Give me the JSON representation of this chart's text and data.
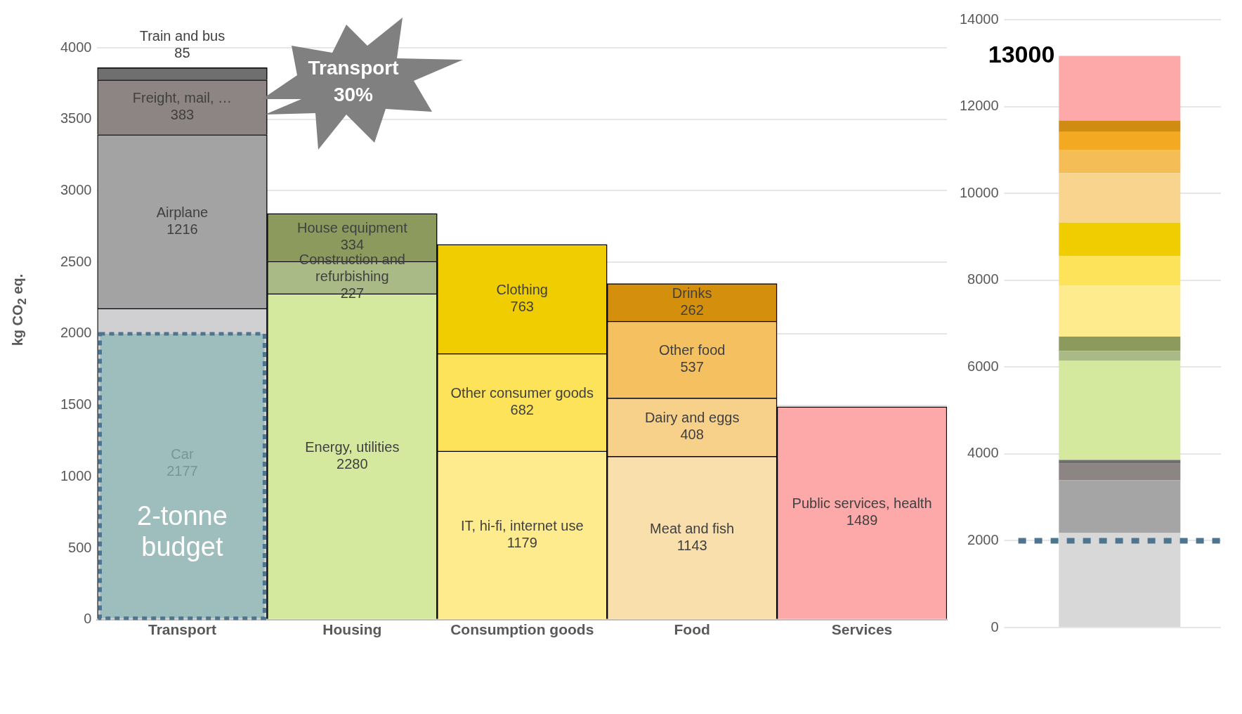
{
  "chart_data": [
    {
      "type": "bar",
      "stacked": true,
      "ylabel": "kg CO$_{2}$ eq.",
      "categories": [
        "Transport",
        "Housing",
        "Consumption goods",
        "Food",
        "Services"
      ],
      "ylim": [
        0,
        4000
      ],
      "yticks": [
        0,
        500,
        1000,
        1500,
        2000,
        2500,
        3000,
        3500,
        4000
      ],
      "grid": "y",
      "legend": false,
      "data_labels": true,
      "series": [
        {
          "name": "Car",
          "color": "#d0d0d2",
          "values": [
            2177,
            null,
            null,
            null,
            null
          ]
        },
        {
          "name": "Airplane",
          "color": "#a3a3a3",
          "values": [
            1216,
            null,
            null,
            null,
            null
          ]
        },
        {
          "name": "Freight, mail, …",
          "color": "#8c8584",
          "values": [
            383,
            null,
            null,
            null,
            null
          ]
        },
        {
          "name": "Train and bus",
          "color": "#6f6f6f",
          "values": [
            85,
            null,
            null,
            null,
            null
          ]
        },
        {
          "name": "Energy, utilities",
          "color": "#d4e89e",
          "values": [
            null,
            2280,
            null,
            null,
            null
          ]
        },
        {
          "name": "Construction and refurbishing",
          "color": "#a9ba86",
          "values": [
            null,
            227,
            null,
            null,
            null
          ]
        },
        {
          "name": "House equipment",
          "color": "#8c9a5e",
          "values": [
            null,
            334,
            null,
            null,
            null
          ]
        },
        {
          "name": "IT, hi-fi, internet use",
          "color": "#fdeb8d",
          "values": [
            null,
            null,
            1179,
            null,
            null
          ]
        },
        {
          "name": "Other consumer goods",
          "color": "#fde35a",
          "values": [
            null,
            null,
            682,
            null,
            null
          ]
        },
        {
          "name": "Clothing",
          "color": "#f0cd00",
          "values": [
            null,
            null,
            763,
            null,
            null
          ]
        },
        {
          "name": "Meat and fish",
          "color": "#f9dfab",
          "values": [
            null,
            null,
            null,
            1143,
            null
          ]
        },
        {
          "name": "Dairy and eggs",
          "color": "#f7d089",
          "values": [
            null,
            null,
            null,
            408,
            null
          ]
        },
        {
          "name": "Other food",
          "color": "#f5c060",
          "values": [
            null,
            null,
            null,
            537,
            null
          ]
        },
        {
          "name": "Drinks",
          "color": "#d4900c",
          "values": [
            null,
            null,
            null,
            262,
            null
          ]
        },
        {
          "name": "Public services, health",
          "color": "#fda9aa",
          "values": [
            null,
            null,
            null,
            null,
            1489
          ]
        }
      ],
      "bands": [
        {
          "axis": "y",
          "from": 0,
          "to": 2000,
          "label": "2-tonne budget",
          "color": "#8ab5b4"
        }
      ],
      "annotations": [
        "Transport 30%"
      ]
    },
    {
      "type": "bar",
      "stacked": true,
      "categories": [
        null
      ],
      "ylim": [
        0,
        14000
      ],
      "yticks": [
        0,
        2000,
        4000,
        6000,
        8000,
        10000,
        12000,
        14000
      ],
      "grid": "y",
      "legend": false,
      "tick_labels": "y",
      "series": [
        {
          "color": "#d8d8d8",
          "values": [
            2177
          ]
        },
        {
          "color": "#a5a5a5",
          "values": [
            1216
          ]
        },
        {
          "color": "#8c8584",
          "values": [
            383
          ]
        },
        {
          "color": "#6f6f6f",
          "values": [
            85
          ]
        },
        {
          "color": "#d4e89e",
          "values": [
            2280
          ]
        },
        {
          "color": "#a9ba86",
          "values": [
            227
          ]
        },
        {
          "color": "#8c9a5e",
          "values": [
            334
          ]
        },
        {
          "color": "#fdeb8d",
          "values": [
            1179
          ]
        },
        {
          "color": "#fde35a",
          "values": [
            682
          ]
        },
        {
          "color": "#f0cd00",
          "values": [
            763
          ]
        },
        {
          "color": "#f9d48f",
          "values": [
            1143
          ]
        },
        {
          "color": "#f5bd55",
          "values": [
            537
          ]
        },
        {
          "color": "#f3aa22",
          "values": [
            408
          ]
        },
        {
          "color": "#d08c12",
          "values": [
            262
          ]
        },
        {
          "color": "#fda9aa",
          "values": [
            1489
          ]
        }
      ],
      "ref_lines": [
        {
          "axis": "y",
          "value": 2000,
          "color": "#4e7590",
          "line_style": "dotted"
        }
      ],
      "annotations": [
        "13000"
      ]
    }
  ]
}
